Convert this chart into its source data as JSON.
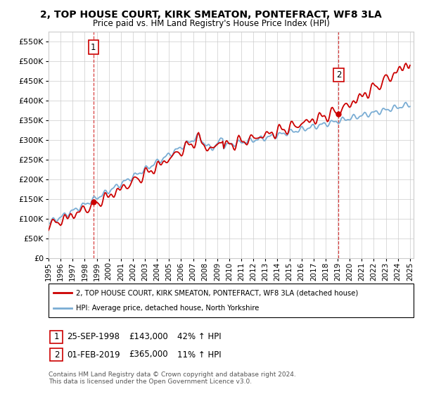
{
  "title": "2, TOP HOUSE COURT, KIRK SMEATON, PONTEFRACT, WF8 3LA",
  "subtitle": "Price paid vs. HM Land Registry's House Price Index (HPI)",
  "ylim": [
    0,
    575000
  ],
  "yticks": [
    0,
    50000,
    100000,
    150000,
    200000,
    250000,
    300000,
    350000,
    400000,
    450000,
    500000,
    550000
  ],
  "red_color": "#cc0000",
  "blue_color": "#7aadd4",
  "legend_label_red": "2, TOP HOUSE COURT, KIRK SMEATON, PONTEFRACT, WF8 3LA (detached house)",
  "legend_label_blue": "HPI: Average price, detached house, North Yorkshire",
  "sale1_date": "25-SEP-1998",
  "sale1_price": 143000,
  "sale1_hpi": "42% ↑ HPI",
  "sale1_x": 1998.73,
  "sale2_date": "01-FEB-2019",
  "sale2_price": 365000,
  "sale2_hpi": "11% ↑ HPI",
  "sale2_x": 2019.08,
  "footer": "Contains HM Land Registry data © Crown copyright and database right 2024.\nThis data is licensed under the Open Government Licence v3.0.",
  "background_color": "#ffffff",
  "grid_color": "#cccccc"
}
